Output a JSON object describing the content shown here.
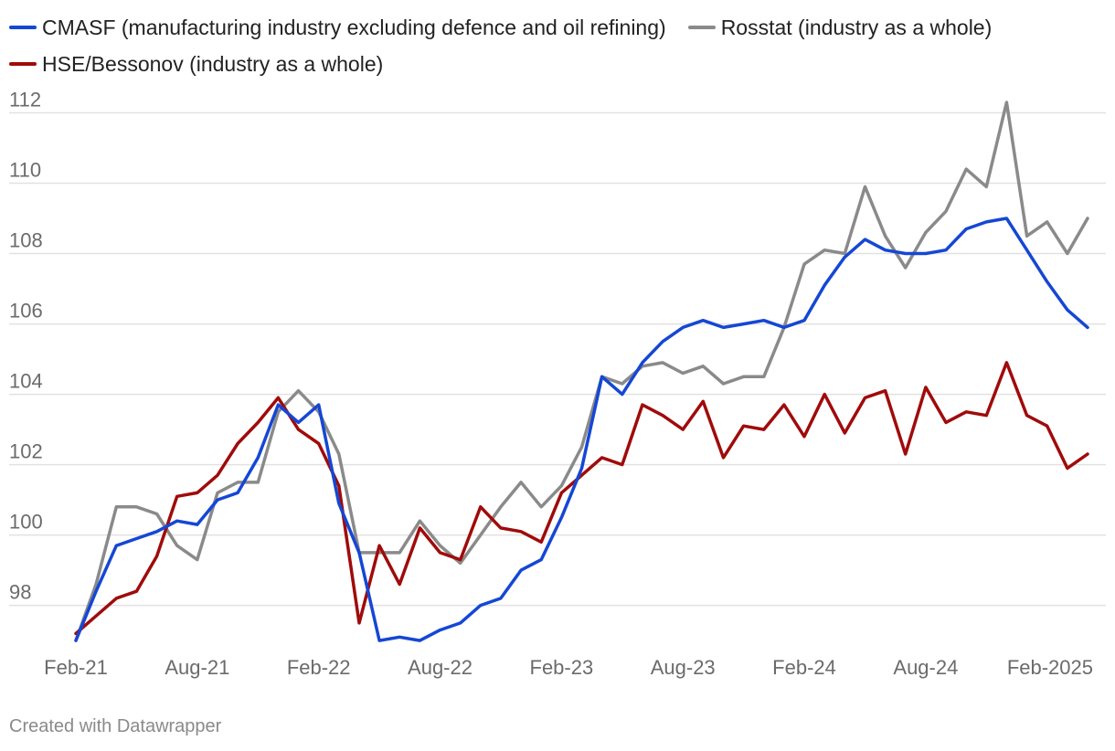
{
  "credit": "Created with Datawrapper",
  "chart_data": {
    "type": "line",
    "title": "",
    "xlabel": "",
    "ylabel": "",
    "ylim": [
      96.9,
      113
    ],
    "yticks": [
      98,
      100,
      102,
      104,
      106,
      108,
      110,
      112
    ],
    "grid": true,
    "legend_position": "top-left",
    "x": [
      "Feb-21",
      "Mar-21",
      "Apr-21",
      "May-21",
      "Jun-21",
      "Jul-21",
      "Aug-21",
      "Sep-21",
      "Oct-21",
      "Nov-21",
      "Dec-21",
      "Jan-22",
      "Feb-22",
      "Mar-22",
      "Apr-22",
      "May-22",
      "Jun-22",
      "Jul-22",
      "Aug-22",
      "Sep-22",
      "Oct-22",
      "Nov-22",
      "Dec-22",
      "Jan-23",
      "Feb-23",
      "Mar-23",
      "Apr-23",
      "May-23",
      "Jun-23",
      "Jul-23",
      "Aug-23",
      "Sep-23",
      "Oct-23",
      "Nov-23",
      "Dec-23",
      "Jan-24",
      "Feb-24",
      "Mar-24",
      "Apr-24",
      "May-24",
      "Jun-24",
      "Jul-24",
      "Aug-24",
      "Sep-24",
      "Oct-24",
      "Nov-24",
      "Dec-24",
      "Jan-25",
      "Feb-25",
      "Mar-25",
      "Apr-25"
    ],
    "xticks": [
      {
        "index": 0,
        "label": "Feb-21"
      },
      {
        "index": 6,
        "label": "Aug-21"
      },
      {
        "index": 12,
        "label": "Feb-22"
      },
      {
        "index": 18,
        "label": "Aug-22"
      },
      {
        "index": 24,
        "label": "Feb-23"
      },
      {
        "index": 30,
        "label": "Aug-23"
      },
      {
        "index": 36,
        "label": "Feb-24"
      },
      {
        "index": 42,
        "label": "Aug-24"
      },
      {
        "index": 48,
        "label": "Feb-2025"
      }
    ],
    "series": [
      {
        "name": "CMASF (manufacturing industry excluding defence and oil refining)",
        "color": "#1547d4",
        "values": [
          97.0,
          98.4,
          99.7,
          99.9,
          100.1,
          100.4,
          100.3,
          101.0,
          101.2,
          102.2,
          103.7,
          103.2,
          103.7,
          100.9,
          99.5,
          97.0,
          97.1,
          97.0,
          97.3,
          97.5,
          98.0,
          98.2,
          99.0,
          99.3,
          100.5,
          101.9,
          104.5,
          104.0,
          104.9,
          105.5,
          105.9,
          106.1,
          105.9,
          106.0,
          106.1,
          105.9,
          106.1,
          107.1,
          107.9,
          108.4,
          108.1,
          108.0,
          108.0,
          108.1,
          108.7,
          108.9,
          109.0,
          108.1,
          107.2,
          106.4,
          105.9
        ]
      },
      {
        "name": "Rosstat (industry as a whole)",
        "color": "#8a8a8a",
        "values": [
          97.0,
          98.6,
          100.8,
          100.8,
          100.6,
          99.7,
          99.3,
          101.2,
          101.5,
          101.5,
          103.5,
          104.1,
          103.5,
          102.3,
          99.5,
          99.5,
          99.5,
          100.4,
          99.7,
          99.2,
          100.0,
          100.8,
          101.5,
          100.8,
          101.4,
          102.5,
          104.5,
          104.3,
          104.8,
          104.9,
          104.6,
          104.8,
          104.3,
          104.5,
          104.5,
          105.9,
          107.7,
          108.1,
          108.0,
          109.9,
          108.5,
          107.6,
          108.6,
          109.2,
          110.4,
          109.9,
          112.3,
          108.5,
          108.9,
          108.0,
          109.0
        ]
      },
      {
        "name": "HSE/Bessonov (industry as a whole)",
        "color": "#a00b0b",
        "values": [
          97.2,
          97.7,
          98.2,
          98.4,
          99.4,
          101.1,
          101.2,
          101.7,
          102.6,
          103.2,
          103.9,
          103.0,
          102.6,
          101.4,
          97.5,
          99.7,
          98.6,
          100.2,
          99.5,
          99.3,
          100.8,
          100.2,
          100.1,
          99.8,
          101.2,
          101.7,
          102.2,
          102.0,
          103.7,
          103.4,
          103.0,
          103.8,
          102.2,
          103.1,
          103.0,
          103.7,
          102.8,
          104.0,
          102.9,
          103.9,
          104.1,
          102.3,
          104.2,
          103.2,
          103.5,
          103.4,
          104.9,
          103.4,
          103.1,
          101.9,
          102.3
        ]
      }
    ]
  }
}
